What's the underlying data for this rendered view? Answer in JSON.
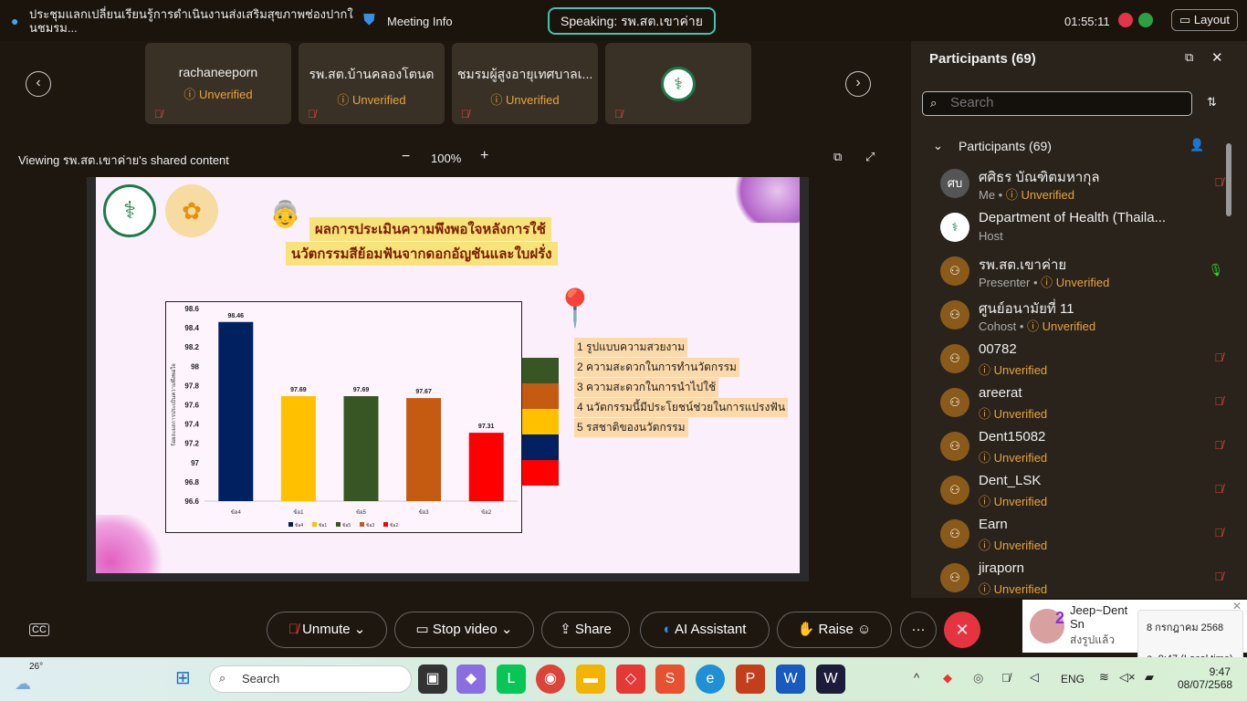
{
  "meeting": {
    "title": "ประชุมแลกเปลี่ยนเรียนรู้การดำเนินงานส่งเสริมสุขภาพช่องปากในชมรม...",
    "info": "Meeting Info",
    "speaking": "Speaking: รพ.สต.เขาค่าย",
    "time": "01:55:11",
    "layout": "Layout"
  },
  "thumbnails": [
    {
      "name": "rachaneeporn",
      "status": "Unverified"
    },
    {
      "name": "รพ.สต.บ้านคลองโตนด",
      "status": "Unverified"
    },
    {
      "name": "ชมรมผู้สูงอายุเทศบาลเ...",
      "status": "Unverified"
    },
    {
      "name": "",
      "status": ""
    }
  ],
  "share": {
    "viewing": "Viewing รพ.สต.เขาค่าย's shared content",
    "zoom": "100%",
    "minus": "−",
    "plus": "+"
  },
  "slide": {
    "title_line1": "ผลการประเมินความพึงพอใจหลังการใช้",
    "title_line2": "นวัตกรรมสีย้อมฟันจากดอกอัญชันและใบฝรั่ง",
    "legend_items": [
      "1 รูปแบบความสวยงาม",
      "2 ความสะดวกในการทำนวัตกรรม",
      "3 ความสะดวกในการนำไปใช้",
      "4 นวัตกรรมนี้มีประโยชน์ช่วยในการแปรงฟัน",
      "5 รสชาติของนวัตกรรม"
    ],
    "swatch_colors": [
      "#375623",
      "#c55a11",
      "#ffc000",
      "#002060",
      "#ff0000"
    ]
  },
  "chart_data": {
    "type": "bar",
    "categories": [
      "ข้อ4",
      "ข้อ1",
      "ข้อ5",
      "ข้อ3",
      "ข้อ2"
    ],
    "values": [
      98.46,
      97.69,
      97.69,
      97.67,
      97.31
    ],
    "colors": [
      "#002060",
      "#ffc000",
      "#375623",
      "#c55a11",
      "#ff0000"
    ],
    "ylabel": "ร้อยละผลการประเมินความพึงพอใจ",
    "ylim": [
      96.6,
      98.6
    ],
    "yticks": [
      "96.6",
      "96.8",
      "97",
      "97.2",
      "97.4",
      "97.6",
      "97.8",
      "98",
      "98.2",
      "98.4",
      "98.6"
    ],
    "legend": [
      "ข้อ4",
      "ข้อ1",
      "ข้อ5",
      "ข้อ3",
      "ข้อ2"
    ],
    "legend_position": "bottom",
    "grid": false
  },
  "participants": {
    "title": "Participants (69)",
    "search_placeholder": "Search",
    "group": "Participants (69)",
    "list": [
      {
        "initials": "ศบ",
        "name": "ศศิธร บัณฑิตมหากุล",
        "role": "Me",
        "status": "Unverified"
      },
      {
        "initials": "",
        "name": "Department of Health (Thaila...",
        "role": "Host",
        "status": ""
      },
      {
        "initials": "",
        "name": "รพ.สต.เขาค่าย",
        "role": "Presenter",
        "status": "Unverified"
      },
      {
        "initials": "",
        "name": "ศูนย์อนามัยที่ 11",
        "role": "Cohost",
        "status": "Unverified"
      },
      {
        "initials": "",
        "name": "00782",
        "role": "",
        "status": "Unverified"
      },
      {
        "initials": "",
        "name": "areerat",
        "role": "",
        "status": "Unverified"
      },
      {
        "initials": "",
        "name": "Dent15082",
        "role": "",
        "status": "Unverified"
      },
      {
        "initials": "",
        "name": "Dent_LSK",
        "role": "",
        "status": "Unverified"
      },
      {
        "initials": "",
        "name": "Earn",
        "role": "",
        "status": "Unverified"
      },
      {
        "initials": "",
        "name": "jiraporn",
        "role": "",
        "status": "Unverified"
      }
    ]
  },
  "controls": {
    "unmute": "Unmute",
    "stop_video": "Stop video",
    "share": "Share",
    "ai": "AI Assistant",
    "raise": "Raise",
    "more": "···"
  },
  "notification": {
    "name": "Jeep~Dent Sn",
    "message": "ส่งรูปแล้ว",
    "badge": "2"
  },
  "tooltip": {
    "date": "8 กรกฎาคม 2568",
    "time": "อ. 9:47 (Local time)"
  },
  "taskbar": {
    "weather": "26°",
    "search": "Search",
    "lang": "ENG",
    "clock_time": "9:47",
    "clock_date": "08/07/2568"
  }
}
